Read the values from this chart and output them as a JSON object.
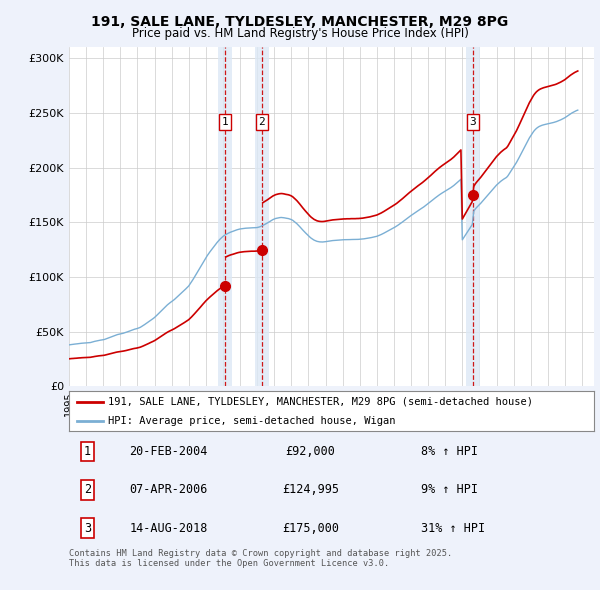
{
  "title": "191, SALE LANE, TYLDESLEY, MANCHESTER, M29 8PG",
  "subtitle": "Price paid vs. HM Land Registry's House Price Index (HPI)",
  "background_color": "#eef2fb",
  "plot_bg_color": "#ffffff",
  "ylabel_ticks": [
    "£0",
    "£50K",
    "£100K",
    "£150K",
    "£200K",
    "£250K",
    "£300K"
  ],
  "ytick_vals": [
    0,
    50000,
    100000,
    150000,
    200000,
    250000,
    300000
  ],
  "ylim": [
    0,
    310000
  ],
  "xlim_start": 1995.0,
  "xlim_end": 2025.7,
  "sale_dates": [
    2004.13,
    2006.27,
    2018.62
  ],
  "sale_prices": [
    92000,
    124995,
    175000
  ],
  "sale_premiums": [
    1.08,
    1.09,
    1.31
  ],
  "sale_labels": [
    "1",
    "2",
    "3"
  ],
  "hpi_line_color": "#7bafd4",
  "sale_line_color": "#cc0000",
  "marker_color": "#cc0000",
  "vline_color": "#cc0000",
  "vline_shade": "#dce8f5",
  "legend_sale_label": "191, SALE LANE, TYLDESLEY, MANCHESTER, M29 8PG (semi-detached house)",
  "legend_hpi_label": "HPI: Average price, semi-detached house, Wigan",
  "table_data": [
    {
      "num": "1",
      "date": "20-FEB-2004",
      "price": "£92,000",
      "change": "8% ↑ HPI"
    },
    {
      "num": "2",
      "date": "07-APR-2006",
      "price": "£124,995",
      "change": "9% ↑ HPI"
    },
    {
      "num": "3",
      "date": "14-AUG-2018",
      "price": "£175,000",
      "change": "31% ↑ HPI"
    }
  ],
  "footnote": "Contains HM Land Registry data © Crown copyright and database right 2025.\nThis data is licensed under the Open Government Licence v3.0.",
  "hpi_x": [
    1995.0,
    1995.083,
    1995.167,
    1995.25,
    1995.333,
    1995.417,
    1995.5,
    1995.583,
    1995.667,
    1995.75,
    1995.833,
    1995.917,
    1996.0,
    1996.083,
    1996.167,
    1996.25,
    1996.333,
    1996.417,
    1996.5,
    1996.583,
    1996.667,
    1996.75,
    1996.833,
    1996.917,
    1997.0,
    1997.083,
    1997.167,
    1997.25,
    1997.333,
    1997.417,
    1997.5,
    1997.583,
    1997.667,
    1997.75,
    1997.833,
    1997.917,
    1998.0,
    1998.083,
    1998.167,
    1998.25,
    1998.333,
    1998.417,
    1998.5,
    1998.583,
    1998.667,
    1998.75,
    1998.833,
    1998.917,
    1999.0,
    1999.083,
    1999.167,
    1999.25,
    1999.333,
    1999.417,
    1999.5,
    1999.583,
    1999.667,
    1999.75,
    1999.833,
    1999.917,
    2000.0,
    2000.083,
    2000.167,
    2000.25,
    2000.333,
    2000.417,
    2000.5,
    2000.583,
    2000.667,
    2000.75,
    2000.833,
    2000.917,
    2001.0,
    2001.083,
    2001.167,
    2001.25,
    2001.333,
    2001.417,
    2001.5,
    2001.583,
    2001.667,
    2001.75,
    2001.833,
    2001.917,
    2002.0,
    2002.083,
    2002.167,
    2002.25,
    2002.333,
    2002.417,
    2002.5,
    2002.583,
    2002.667,
    2002.75,
    2002.833,
    2002.917,
    2003.0,
    2003.083,
    2003.167,
    2003.25,
    2003.333,
    2003.417,
    2003.5,
    2003.583,
    2003.667,
    2003.75,
    2003.833,
    2003.917,
    2004.0,
    2004.083,
    2004.167,
    2004.25,
    2004.333,
    2004.417,
    2004.5,
    2004.583,
    2004.667,
    2004.75,
    2004.833,
    2004.917,
    2005.0,
    2005.083,
    2005.167,
    2005.25,
    2005.333,
    2005.417,
    2005.5,
    2005.583,
    2005.667,
    2005.75,
    2005.833,
    2005.917,
    2006.0,
    2006.083,
    2006.167,
    2006.25,
    2006.333,
    2006.417,
    2006.5,
    2006.583,
    2006.667,
    2006.75,
    2006.833,
    2006.917,
    2007.0,
    2007.083,
    2007.167,
    2007.25,
    2007.333,
    2007.417,
    2007.5,
    2007.583,
    2007.667,
    2007.75,
    2007.833,
    2007.917,
    2008.0,
    2008.083,
    2008.167,
    2008.25,
    2008.333,
    2008.417,
    2008.5,
    2008.583,
    2008.667,
    2008.75,
    2008.833,
    2008.917,
    2009.0,
    2009.083,
    2009.167,
    2009.25,
    2009.333,
    2009.417,
    2009.5,
    2009.583,
    2009.667,
    2009.75,
    2009.833,
    2009.917,
    2010.0,
    2010.083,
    2010.167,
    2010.25,
    2010.333,
    2010.417,
    2010.5,
    2010.583,
    2010.667,
    2010.75,
    2010.833,
    2010.917,
    2011.0,
    2011.083,
    2011.167,
    2011.25,
    2011.333,
    2011.417,
    2011.5,
    2011.583,
    2011.667,
    2011.75,
    2011.833,
    2011.917,
    2012.0,
    2012.083,
    2012.167,
    2012.25,
    2012.333,
    2012.417,
    2012.5,
    2012.583,
    2012.667,
    2012.75,
    2012.833,
    2012.917,
    2013.0,
    2013.083,
    2013.167,
    2013.25,
    2013.333,
    2013.417,
    2013.5,
    2013.583,
    2013.667,
    2013.75,
    2013.833,
    2013.917,
    2014.0,
    2014.083,
    2014.167,
    2014.25,
    2014.333,
    2014.417,
    2014.5,
    2014.583,
    2014.667,
    2014.75,
    2014.833,
    2014.917,
    2015.0,
    2015.083,
    2015.167,
    2015.25,
    2015.333,
    2015.417,
    2015.5,
    2015.583,
    2015.667,
    2015.75,
    2015.833,
    2015.917,
    2016.0,
    2016.083,
    2016.167,
    2016.25,
    2016.333,
    2016.417,
    2016.5,
    2016.583,
    2016.667,
    2016.75,
    2016.833,
    2016.917,
    2017.0,
    2017.083,
    2017.167,
    2017.25,
    2017.333,
    2017.417,
    2017.5,
    2017.583,
    2017.667,
    2017.75,
    2017.833,
    2017.917,
    2018.0,
    2018.083,
    2018.167,
    2018.25,
    2018.333,
    2018.417,
    2018.5,
    2018.583,
    2018.667,
    2018.75,
    2018.833,
    2018.917,
    2019.0,
    2019.083,
    2019.167,
    2019.25,
    2019.333,
    2019.417,
    2019.5,
    2019.583,
    2019.667,
    2019.75,
    2019.833,
    2019.917,
    2020.0,
    2020.083,
    2020.167,
    2020.25,
    2020.333,
    2020.417,
    2020.5,
    2020.583,
    2020.667,
    2020.75,
    2020.833,
    2020.917,
    2021.0,
    2021.083,
    2021.167,
    2021.25,
    2021.333,
    2021.417,
    2021.5,
    2021.583,
    2021.667,
    2021.75,
    2021.833,
    2021.917,
    2022.0,
    2022.083,
    2022.167,
    2022.25,
    2022.333,
    2022.417,
    2022.5,
    2022.583,
    2022.667,
    2022.75,
    2022.833,
    2022.917,
    2023.0,
    2023.083,
    2023.167,
    2023.25,
    2023.333,
    2023.417,
    2023.5,
    2023.583,
    2023.667,
    2023.75,
    2023.833,
    2023.917,
    2024.0,
    2024.083,
    2024.167,
    2024.25,
    2024.333,
    2024.417,
    2024.5,
    2024.583,
    2024.667,
    2024.75
  ],
  "hpi_y": [
    38000,
    38200,
    38400,
    38500,
    38700,
    38800,
    39000,
    39200,
    39300,
    39500,
    39600,
    39700,
    39800,
    39900,
    40000,
    40100,
    40500,
    40800,
    41200,
    41500,
    41800,
    42100,
    42300,
    42500,
    42700,
    43000,
    43500,
    44000,
    44500,
    45000,
    45500,
    46000,
    46500,
    47000,
    47400,
    47700,
    48000,
    48300,
    48600,
    49000,
    49400,
    49900,
    50400,
    50900,
    51400,
    51900,
    52300,
    52600,
    53000,
    53500,
    54000,
    54800,
    55600,
    56500,
    57400,
    58300,
    59200,
    60200,
    61100,
    62000,
    63000,
    64200,
    65500,
    66800,
    68100,
    69400,
    70700,
    72000,
    73300,
    74500,
    75600,
    76600,
    77500,
    78500,
    79500,
    80700,
    81900,
    83100,
    84300,
    85500,
    86700,
    87900,
    89200,
    90500,
    91800,
    93700,
    95600,
    97700,
    99800,
    102000,
    104200,
    106400,
    108600,
    110900,
    113200,
    115400,
    117600,
    119500,
    121400,
    123200,
    124900,
    126600,
    128300,
    130000,
    131700,
    133200,
    134600,
    135800,
    137000,
    138000,
    138800,
    139500,
    140200,
    140800,
    141300,
    141700,
    142200,
    142700,
    143200,
    143600,
    143900,
    144100,
    144300,
    144500,
    144600,
    144700,
    144800,
    144900,
    145000,
    145000,
    145000,
    145100,
    145200,
    145500,
    145900,
    146500,
    147100,
    147800,
    148500,
    149200,
    150000,
    150800,
    151600,
    152400,
    153000,
    153500,
    153800,
    154100,
    154300,
    154400,
    154300,
    154100,
    153800,
    153600,
    153400,
    153000,
    152500,
    151800,
    150800,
    149700,
    148600,
    147300,
    145900,
    144400,
    143000,
    141600,
    140300,
    139000,
    137700,
    136500,
    135400,
    134500,
    133700,
    133100,
    132600,
    132300,
    132100,
    132000,
    132000,
    132100,
    132300,
    132500,
    132700,
    132900,
    133100,
    133300,
    133400,
    133500,
    133600,
    133700,
    133800,
    133900,
    134000,
    134100,
    134100,
    134200,
    134200,
    134200,
    134300,
    134300,
    134300,
    134300,
    134400,
    134400,
    134500,
    134600,
    134700,
    134900,
    135100,
    135300,
    135500,
    135700,
    136000,
    136300,
    136600,
    136900,
    137200,
    137700,
    138200,
    138800,
    139400,
    140100,
    140800,
    141500,
    142200,
    142900,
    143600,
    144300,
    145000,
    145800,
    146600,
    147500,
    148400,
    149300,
    150300,
    151300,
    152300,
    153300,
    154300,
    155300,
    156200,
    157100,
    158000,
    158900,
    159800,
    160700,
    161500,
    162400,
    163200,
    164100,
    165100,
    166100,
    167100,
    168100,
    169100,
    170200,
    171300,
    172300,
    173300,
    174300,
    175200,
    176100,
    176900,
    177700,
    178400,
    179200,
    180000,
    180800,
    181700,
    182600,
    183600,
    184700,
    185800,
    187000,
    188200,
    189300,
    134000,
    136000,
    138000,
    140000,
    142000,
    144000,
    146000,
    148000,
    160000,
    162000,
    163500,
    164800,
    166000,
    167500,
    169000,
    170500,
    172000,
    173500,
    175000,
    176500,
    178000,
    179500,
    181000,
    182500,
    184000,
    185200,
    186400,
    187500,
    188500,
    189400,
    190200,
    191000,
    192500,
    194500,
    196500,
    198500,
    200500,
    202500,
    204700,
    207000,
    209500,
    212000,
    214500,
    217000,
    219500,
    222000,
    224500,
    227000,
    229000,
    231000,
    233000,
    234500,
    235800,
    236800,
    237600,
    238200,
    238700,
    239100,
    239400,
    239700,
    240000,
    240300,
    240600,
    240900,
    241200,
    241600,
    242000,
    242500,
    243000,
    243600,
    244200,
    244900,
    245600,
    246500,
    247400,
    248300,
    249200,
    250000,
    250700,
    251400,
    252000,
    252500
  ]
}
